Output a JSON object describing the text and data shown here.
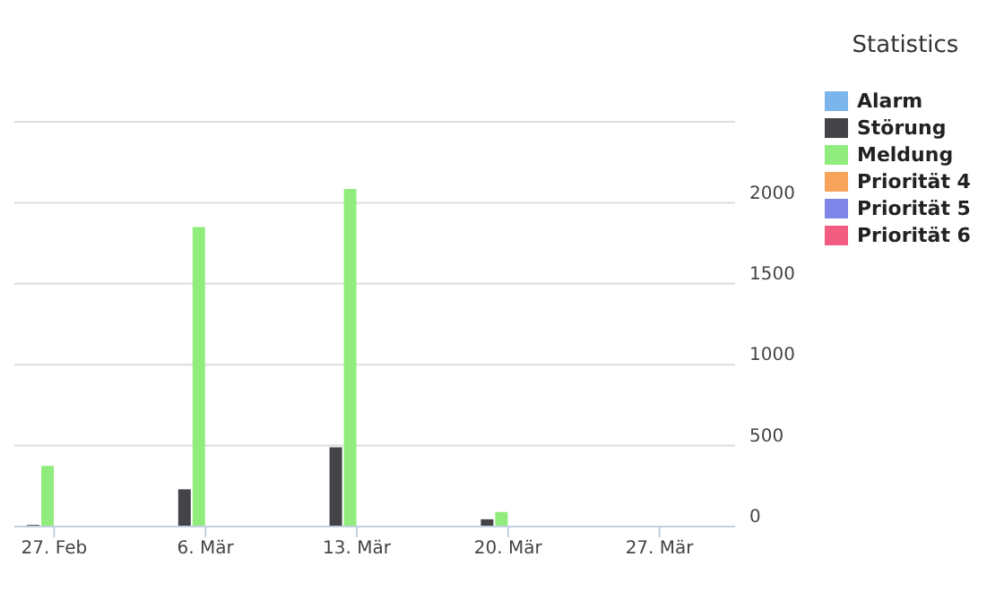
{
  "chart_data": {
    "type": "bar",
    "legend_title": "Statistics",
    "categories": [
      "27. Feb",
      "6. Mär",
      "13. Mär",
      "20. Mär",
      "27. Mär"
    ],
    "series": [
      {
        "name": "Alarm",
        "color": "#7cb5ec",
        "values": [
          0,
          0,
          0,
          0,
          0
        ]
      },
      {
        "name": "Störung",
        "color": "#434348",
        "values": [
          10,
          230,
          490,
          45,
          0
        ]
      },
      {
        "name": "Meldung",
        "color": "#90ed7d",
        "values": [
          375,
          1850,
          2085,
          90,
          0
        ]
      },
      {
        "name": "Priorität 4",
        "color": "#f7a35c",
        "values": [
          0,
          0,
          0,
          0,
          0
        ]
      },
      {
        "name": "Priorität 5",
        "color": "#8085e9",
        "values": [
          0,
          0,
          0,
          0,
          0
        ]
      },
      {
        "name": "Priorität 6",
        "color": "#f15c80",
        "values": [
          0,
          0,
          0,
          0,
          0
        ]
      }
    ],
    "ylim": [
      0,
      2500
    ],
    "yticks": [
      0,
      500,
      1000,
      1500,
      2000,
      {
        "value": 2500,
        "label": null
      }
    ],
    "grid": "y",
    "legend": "right"
  }
}
